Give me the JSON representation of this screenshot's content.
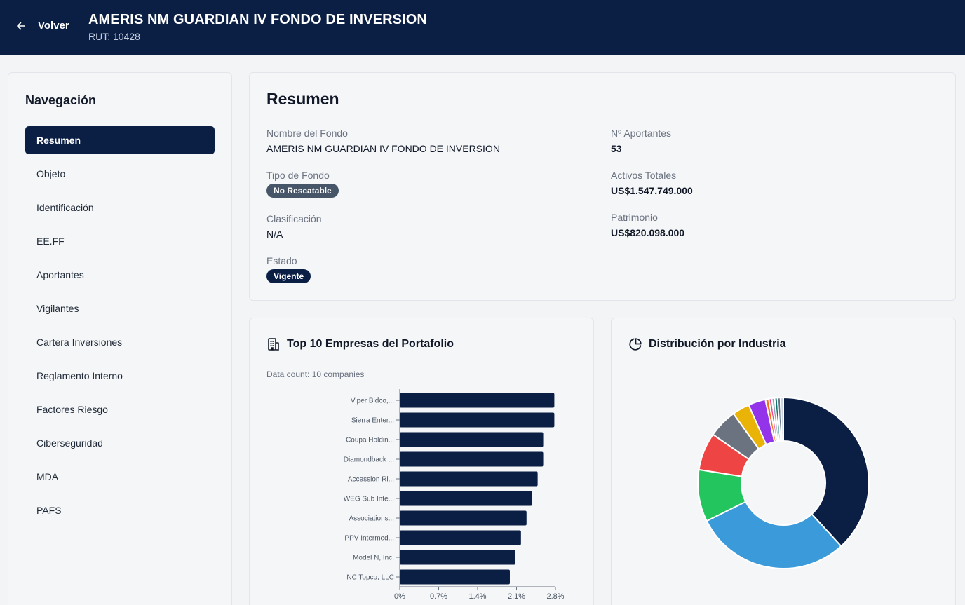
{
  "header": {
    "back_label": "Volver",
    "title": "AMERIS NM GUARDIAN IV FONDO DE INVERSION",
    "rut": "RUT: 10428"
  },
  "sidebar": {
    "title": "Navegación",
    "items": [
      {
        "label": "Resumen",
        "active": true
      },
      {
        "label": "Objeto"
      },
      {
        "label": "Identificación"
      },
      {
        "label": "EE.FF"
      },
      {
        "label": "Aportantes"
      },
      {
        "label": "Vigilantes"
      },
      {
        "label": "Cartera Inversiones"
      },
      {
        "label": "Reglamento Interno"
      },
      {
        "label": "Factores Riesgo"
      },
      {
        "label": "Ciberseguridad"
      },
      {
        "label": "MDA"
      },
      {
        "label": "PAFS"
      }
    ]
  },
  "summary": {
    "title": "Resumen",
    "nombre_label": "Nombre del Fondo",
    "nombre_value": "AMERIS NM GUARDIAN IV FONDO DE INVERSION",
    "tipo_label": "Tipo de Fondo",
    "tipo_value": "No Rescatable",
    "clasificacion_label": "Clasificación",
    "clasificacion_value": "N/A",
    "estado_label": "Estado",
    "estado_value": "Vigente",
    "aportantes_label": "Nº Aportantes",
    "aportantes_value": "53",
    "activos_label": "Activos Totales",
    "activos_value": "US$1.547.749.000",
    "patrimonio_label": "Patrimonio",
    "patrimonio_value": "US$820.098.000"
  },
  "top10": {
    "title": "Top 10 Empresas del Portafolio",
    "icon": "building-icon",
    "data_count": "Data count: 10 companies"
  },
  "industry": {
    "title": "Distribución por Industria",
    "icon": "pie-chart-icon"
  },
  "chart_data": [
    {
      "type": "bar",
      "orientation": "horizontal",
      "categories": [
        "Viper Bidco,...",
        "Sierra Enter...",
        "Coupa Holdin...",
        "Diamondback ...",
        "Accession Ri...",
        "WEG Sub Inte...",
        "Associations...",
        "PPV Intermed...",
        "Model N, Inc.",
        "NC Topco, LLC"
      ],
      "values": [
        2.78,
        2.78,
        2.58,
        2.58,
        2.48,
        2.38,
        2.28,
        2.18,
        2.08,
        1.98
      ],
      "xlim": [
        0,
        2.8
      ],
      "xticks": [
        "0%",
        "0.7%",
        "1.4%",
        "2.1%",
        "2.8%"
      ],
      "color": "#0b1f45"
    },
    {
      "type": "pie",
      "donut": true,
      "values": [
        35.0,
        27.0,
        9.0,
        6.5,
        5.0,
        3.0,
        3.0,
        0.6,
        0.5,
        0.5,
        0.5,
        0.5,
        0.5
      ],
      "colors": [
        "#0b1f45",
        "#3b9ad9",
        "#22c55e",
        "#ef4444",
        "#6b7280",
        "#eab308",
        "#9333ea",
        "#f97316",
        "#ec4899",
        "#94a3b8",
        "#0f766e",
        "#64748b",
        "#cbd5e1"
      ]
    }
  ]
}
